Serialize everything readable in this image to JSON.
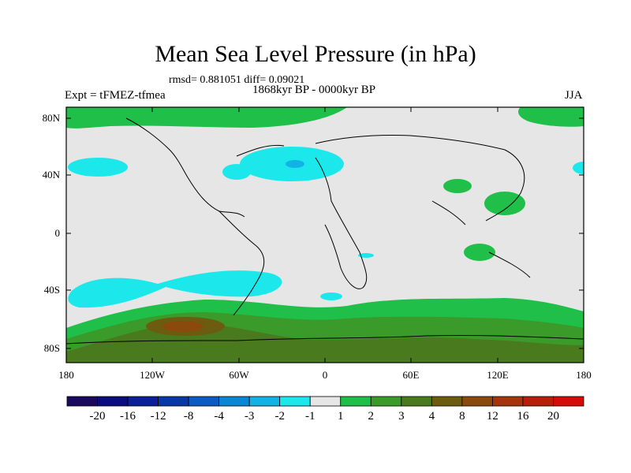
{
  "title": "Mean Sea Level Pressure (in hPa)",
  "stats": "rmsd= 0.881051 diff= 0.09021",
  "period": "1868kyr BP - 0000kyr BP",
  "experiment": "Expt = tFMEZ-tfmea",
  "season": "JJA",
  "lat_labels": [
    "80N",
    "40N",
    "0",
    "40S",
    "80S"
  ],
  "lon_labels": [
    "180",
    "120W",
    "60W",
    "0",
    "60E",
    "120E",
    "180"
  ],
  "colorbar": {
    "labels": [
      "-20",
      "-16",
      "-12",
      "-8",
      "-4",
      "-3",
      "-2",
      "-1",
      "1",
      "2",
      "3",
      "4",
      "8",
      "12",
      "16",
      "20"
    ],
    "colors": [
      "#1a0a5e",
      "#0c0c82",
      "#0b1f98",
      "#0838a8",
      "#0a5cc4",
      "#0a86d6",
      "#12b2e6",
      "#1ce8ec",
      "#e6e6e6",
      "#1fbf4a",
      "#3a9a2a",
      "#4a7a1e",
      "#6b5c10",
      "#8a4a0e",
      "#a6340c",
      "#b81f0a",
      "#d40b08"
    ]
  }
}
